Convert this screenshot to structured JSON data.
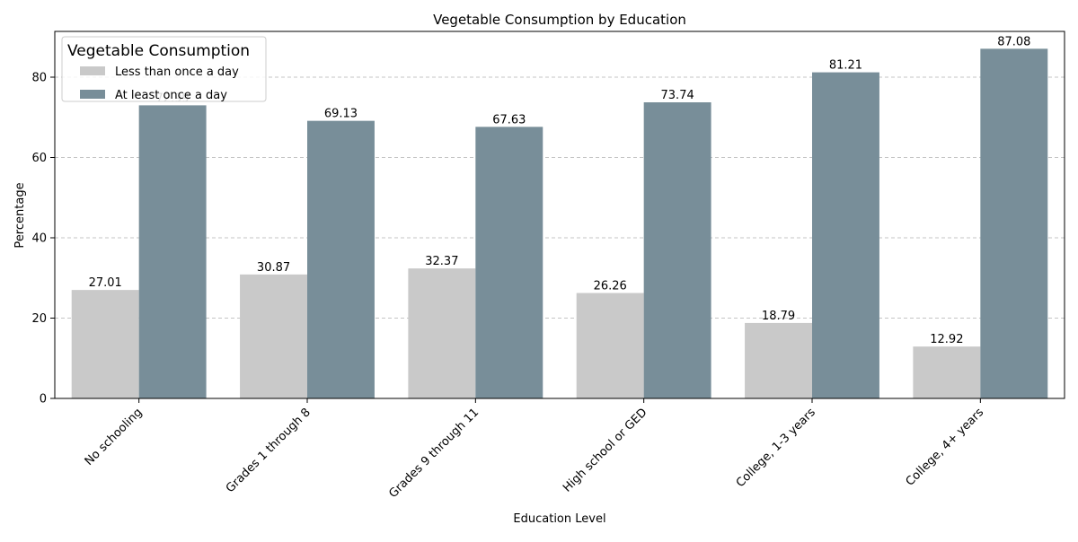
{
  "chart_data": {
    "type": "bar",
    "title": "Vegetable Consumption by Education",
    "xlabel": "Education Level",
    "ylabel": "Percentage",
    "ylim": [
      0,
      91.4
    ],
    "yticks": [
      0,
      20,
      40,
      60,
      80
    ],
    "grid": "y-dashed",
    "legend": {
      "title": "Vegetable Consumption",
      "placement": "top-left"
    },
    "categories": [
      "No schooling",
      "Grades 1 through 8",
      "Grades 9 through 11",
      "High school or GED",
      "College, 1-3 years",
      "College, 4+ years"
    ],
    "series": [
      {
        "name": "Less than once a day",
        "color": "#c9c9c9",
        "values": [
          27.01,
          30.87,
          32.37,
          26.26,
          18.79,
          12.92
        ],
        "labels": [
          "27.01",
          "30.87",
          "32.37",
          "26.26",
          "18.79",
          "12.92"
        ]
      },
      {
        "name": "At least once a day",
        "color": "#788e99",
        "values": [
          72.99,
          69.13,
          67.63,
          73.74,
          81.21,
          87.08
        ],
        "labels": [
          "72.99",
          "69.13",
          "67.63",
          "73.74",
          "81.21",
          "87.08"
        ]
      }
    ]
  }
}
